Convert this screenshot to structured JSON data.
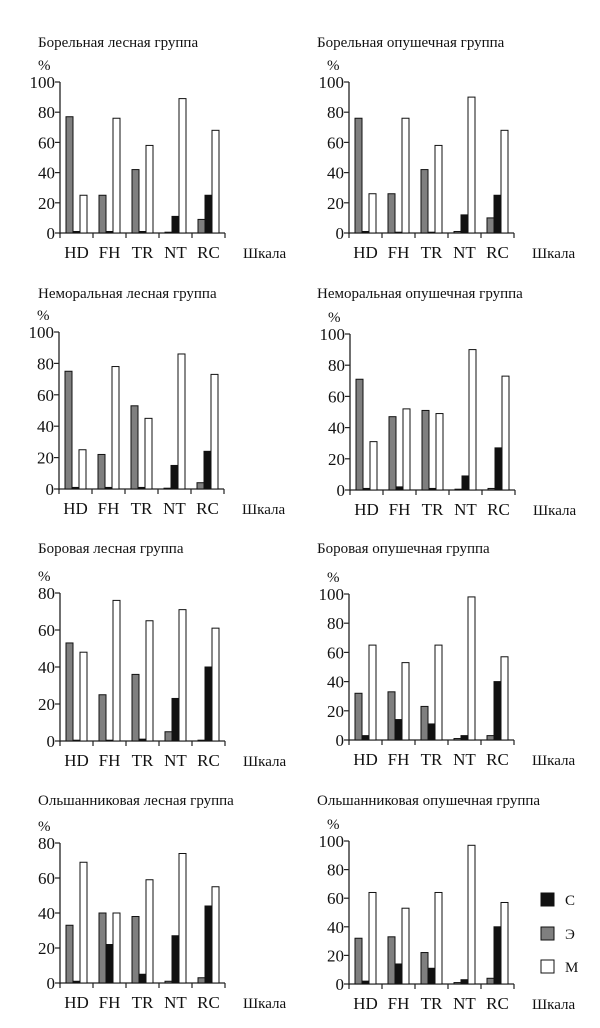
{
  "figure": {
    "categories": [
      "HD",
      "FH",
      "TR",
      "NT",
      "RC"
    ],
    "x_axis_label": "Шкала",
    "y_unit": "%",
    "legend": [
      {
        "key": "C",
        "label": "С",
        "color": "#111111"
      },
      {
        "key": "E",
        "label": "Э",
        "color": "#7f7f7f"
      },
      {
        "key": "M",
        "label": "М",
        "color": "#ffffff"
      }
    ],
    "bar_order": [
      "E",
      "C",
      "M"
    ]
  },
  "chart_data": [
    {
      "type": "bar",
      "title": "Борельная лесная группа",
      "xlabel": "Шкала",
      "ylabel": "%",
      "ylim": [
        0,
        100
      ],
      "yticks": [
        0,
        20,
        40,
        60,
        80,
        100
      ],
      "categories": [
        "HD",
        "FH",
        "TR",
        "NT",
        "RC"
      ],
      "series": [
        {
          "name": "Э",
          "values": [
            77,
            25,
            42,
            0,
            9
          ]
        },
        {
          "name": "С",
          "values": [
            1,
            1,
            1,
            11,
            25
          ]
        },
        {
          "name": "М",
          "values": [
            25,
            76,
            58,
            89,
            68
          ]
        }
      ]
    },
    {
      "type": "bar",
      "title": "Борельная опушечная группа",
      "xlabel": "Шкала",
      "ylabel": "%",
      "ylim": [
        0,
        100
      ],
      "yticks": [
        0,
        20,
        40,
        60,
        80,
        100
      ],
      "categories": [
        "HD",
        "FH",
        "TR",
        "NT",
        "RC"
      ],
      "series": [
        {
          "name": "Э",
          "values": [
            76,
            26,
            42,
            1,
            10
          ]
        },
        {
          "name": "С",
          "values": [
            1,
            0,
            0,
            12,
            25
          ]
        },
        {
          "name": "М",
          "values": [
            26,
            76,
            58,
            90,
            68
          ]
        }
      ]
    },
    {
      "type": "bar",
      "title": "Неморальная лесная группа",
      "xlabel": "Шкала",
      "ylabel": "%",
      "ylim": [
        0,
        100
      ],
      "yticks": [
        0,
        20,
        40,
        60,
        80,
        100
      ],
      "categories": [
        "HD",
        "FH",
        "TR",
        "NT",
        "RC"
      ],
      "series": [
        {
          "name": "Э",
          "values": [
            75,
            22,
            53,
            0,
            4
          ]
        },
        {
          "name": "С",
          "values": [
            1,
            1,
            1,
            15,
            24
          ]
        },
        {
          "name": "М",
          "values": [
            25,
            78,
            45,
            86,
            73
          ]
        }
      ]
    },
    {
      "type": "bar",
      "title": "Неморальная опушечная группа",
      "xlabel": "Шкала",
      "ylabel": "%",
      "ylim": [
        0,
        100
      ],
      "yticks": [
        0,
        20,
        40,
        60,
        80,
        100
      ],
      "categories": [
        "HD",
        "FH",
        "TR",
        "NT",
        "RC"
      ],
      "series": [
        {
          "name": "Э",
          "values": [
            71,
            47,
            51,
            0,
            1
          ]
        },
        {
          "name": "С",
          "values": [
            1,
            2,
            1,
            9,
            27
          ]
        },
        {
          "name": "М",
          "values": [
            31,
            52,
            49,
            90,
            73
          ]
        }
      ]
    },
    {
      "type": "bar",
      "title": "Боровая лесная группа",
      "xlabel": "Шкала",
      "ylabel": "%",
      "ylim": [
        0,
        80
      ],
      "yticks": [
        0,
        20,
        40,
        60,
        80
      ],
      "categories": [
        "HD",
        "FH",
        "TR",
        "NT",
        "RC"
      ],
      "series": [
        {
          "name": "Э",
          "values": [
            53,
            25,
            36,
            5,
            0
          ]
        },
        {
          "name": "С",
          "values": [
            0,
            0,
            1,
            23,
            40
          ]
        },
        {
          "name": "М",
          "values": [
            48,
            76,
            65,
            71,
            61
          ]
        }
      ]
    },
    {
      "type": "bar",
      "title": "Боровая опушечная группа",
      "xlabel": "Шкала",
      "ylabel": "%",
      "ylim": [
        0,
        100
      ],
      "yticks": [
        0,
        20,
        40,
        60,
        80,
        100
      ],
      "categories": [
        "HD",
        "FH",
        "TR",
        "NT",
        "RC"
      ],
      "series": [
        {
          "name": "Э",
          "values": [
            32,
            33,
            23,
            1,
            3
          ]
        },
        {
          "name": "С",
          "values": [
            3,
            14,
            11,
            3,
            40
          ]
        },
        {
          "name": "М",
          "values": [
            65,
            53,
            65,
            98,
            57
          ]
        }
      ]
    },
    {
      "type": "bar",
      "title": "Ольшанниковая лесная группа",
      "xlabel": "Шкала",
      "ylabel": "%",
      "ylim": [
        0,
        80
      ],
      "yticks": [
        0,
        20,
        40,
        60,
        80
      ],
      "categories": [
        "HD",
        "FH",
        "TR",
        "NT",
        "RC"
      ],
      "series": [
        {
          "name": "Э",
          "values": [
            33,
            40,
            38,
            1,
            3
          ]
        },
        {
          "name": "С",
          "values": [
            1,
            22,
            5,
            27,
            44
          ]
        },
        {
          "name": "М",
          "values": [
            69,
            40,
            59,
            74,
            55
          ]
        }
      ]
    },
    {
      "type": "bar",
      "title": "Ольшанниковая опушечная группа",
      "xlabel": "Шкала",
      "ylabel": "%",
      "ylim": [
        0,
        100
      ],
      "yticks": [
        0,
        20,
        40,
        60,
        80,
        100
      ],
      "categories": [
        "HD",
        "FH",
        "TR",
        "NT",
        "RC"
      ],
      "series": [
        {
          "name": "Э",
          "values": [
            32,
            33,
            22,
            1,
            4
          ]
        },
        {
          "name": "С",
          "values": [
            2,
            14,
            11,
            3,
            40
          ]
        },
        {
          "name": "М",
          "values": [
            64,
            53,
            64,
            97,
            57
          ]
        }
      ],
      "legend": [
        "С",
        "Э",
        "М"
      ]
    }
  ]
}
